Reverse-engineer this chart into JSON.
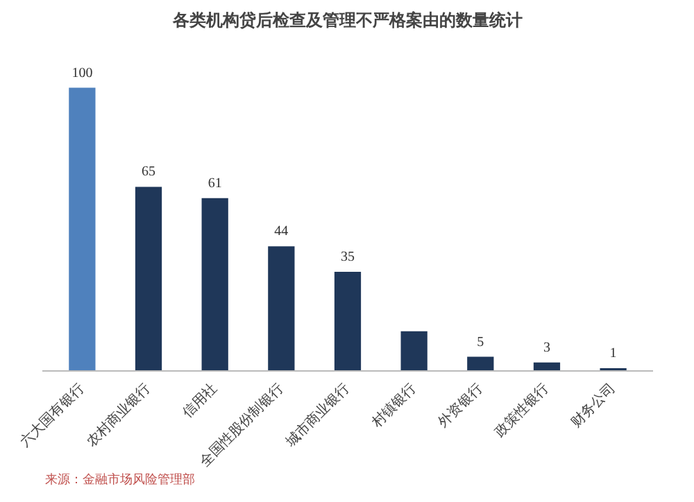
{
  "chart_data": {
    "type": "bar",
    "title": "各类机构贷后检查及管理不严格案由的数量统计",
    "categories": [
      "六大国有银行",
      "农村商业银行",
      "信用社",
      "全国性股份制银行",
      "城市商业银行",
      "村镇银行",
      "外资银行",
      "政策性银行",
      "财务公司"
    ],
    "values": [
      100,
      65,
      61,
      44,
      35,
      14,
      5,
      3,
      1
    ],
    "colors": [
      "#4f81bd",
      "#1f3759",
      "#1f3759",
      "#1f3759",
      "#1f3759",
      "#1f3759",
      "#1f3759",
      "#1f3759",
      "#1f3759"
    ],
    "value_labels": [
      "100",
      "65",
      "61",
      "44",
      "35",
      null,
      "5",
      "3",
      "1"
    ],
    "annotations": [
      "来源：金融市场风险管理部"
    ],
    "grid": false
  }
}
